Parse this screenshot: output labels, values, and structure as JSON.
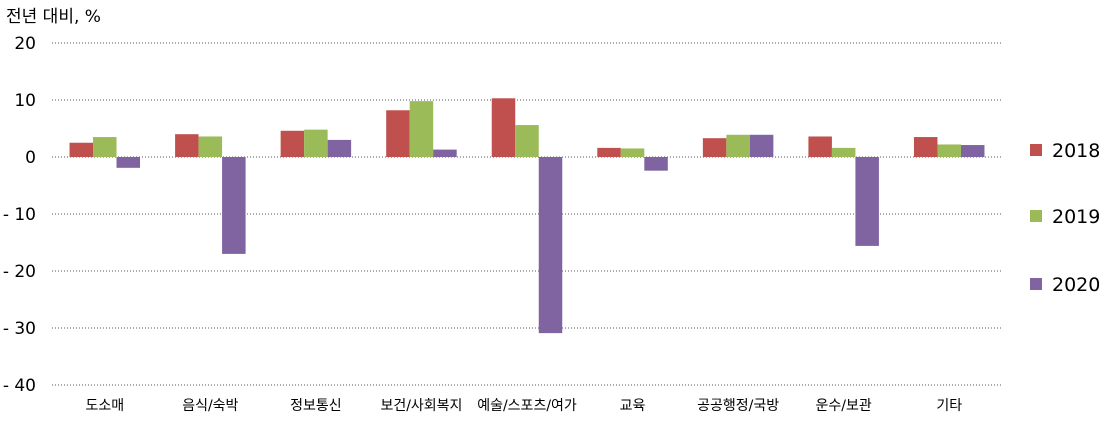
{
  "chart_data": {
    "type": "bar",
    "ylabel": "전년 대비, %",
    "ylim": [
      -40,
      20
    ],
    "yticks": [
      20,
      10,
      0,
      -10,
      -20,
      -30,
      -40
    ],
    "ytick_labels": [
      "20",
      "10",
      "0",
      "- 10",
      "- 20",
      "- 30",
      "- 40"
    ],
    "grid": "horizontal dotted",
    "legend_position": "right",
    "categories": [
      "도소매",
      "음식/숙박",
      "정보통신",
      "보건/사회복지",
      "예술/스포츠/여가",
      "교육",
      "공공행정/국방",
      "운수/보관",
      "기타"
    ],
    "series": [
      {
        "name": "2018",
        "color": "#c0504d",
        "values": [
          2.5,
          4.0,
          4.6,
          8.2,
          10.3,
          1.6,
          3.3,
          3.6,
          3.5
        ]
      },
      {
        "name": "2019",
        "color": "#9bbb59",
        "values": [
          3.5,
          3.6,
          4.8,
          9.8,
          5.6,
          1.5,
          3.9,
          1.6,
          2.2
        ]
      },
      {
        "name": "2020",
        "color": "#8064a2",
        "values": [
          -1.9,
          -17.0,
          3.0,
          1.3,
          -30.9,
          -2.4,
          3.9,
          -15.6,
          2.1
        ]
      }
    ]
  }
}
